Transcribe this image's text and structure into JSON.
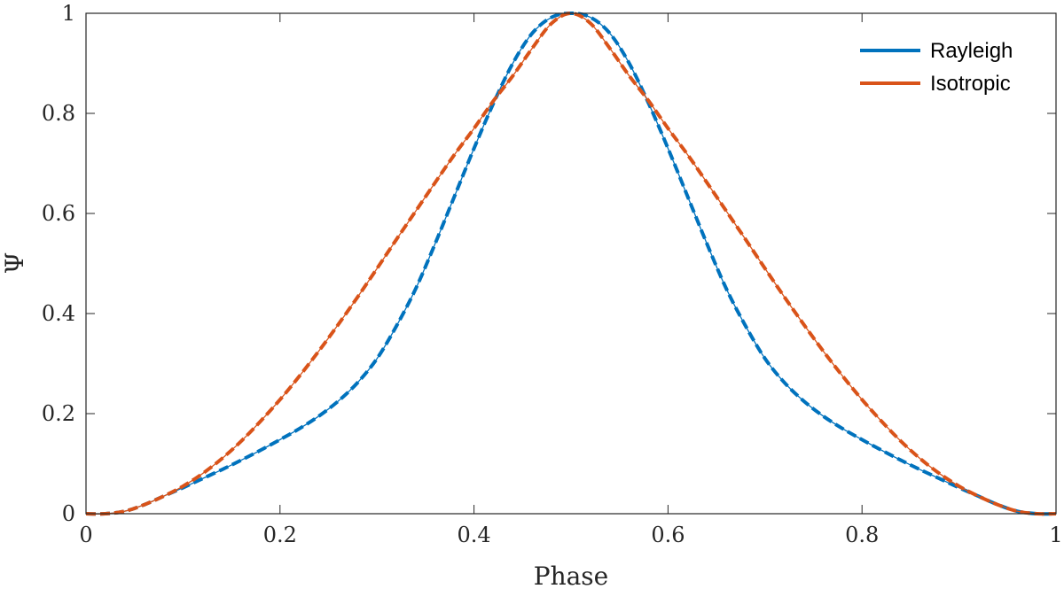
{
  "chart_data": {
    "type": "line",
    "title": "",
    "xlabel": "Phase",
    "ylabel": "Ψ",
    "xlim": [
      0,
      1
    ],
    "ylim": [
      0,
      1
    ],
    "x_ticks": [
      "0",
      "0.2",
      "0.4",
      "0.6",
      "0.8",
      "1"
    ],
    "y_ticks": [
      "0",
      "0.2",
      "0.4",
      "0.6",
      "0.8",
      "1"
    ],
    "grid": false,
    "legend_position": "top-right",
    "series": [
      {
        "name": "Rayleigh",
        "color": "#0072BD",
        "x": [
          0.0,
          0.02,
          0.04,
          0.06,
          0.08,
          0.1,
          0.12,
          0.14,
          0.16,
          0.18,
          0.2,
          0.22,
          0.24,
          0.26,
          0.28,
          0.3,
          0.32,
          0.34,
          0.36,
          0.38,
          0.4,
          0.42,
          0.44,
          0.46,
          0.48,
          0.5,
          0.52,
          0.54,
          0.56,
          0.58,
          0.6,
          0.62,
          0.64,
          0.66,
          0.68,
          0.7,
          0.72,
          0.74,
          0.76,
          0.78,
          0.8,
          0.82,
          0.84,
          0.86,
          0.88,
          0.9,
          0.92,
          0.94,
          0.96,
          0.98,
          1.0
        ],
        "y": [
          0.0,
          0.0,
          0.005,
          0.018,
          0.035,
          0.052,
          0.07,
          0.088,
          0.107,
          0.127,
          0.148,
          0.17,
          0.195,
          0.225,
          0.262,
          0.31,
          0.375,
          0.45,
          0.54,
          0.635,
          0.73,
          0.82,
          0.9,
          0.96,
          0.992,
          1.0,
          0.992,
          0.96,
          0.9,
          0.82,
          0.73,
          0.635,
          0.54,
          0.45,
          0.375,
          0.31,
          0.262,
          0.225,
          0.195,
          0.17,
          0.148,
          0.127,
          0.107,
          0.088,
          0.07,
          0.052,
          0.035,
          0.018,
          0.005,
          0.0,
          0.0
        ]
      },
      {
        "name": "Isotropic",
        "color": "#D95319",
        "x": [
          0.0,
          0.02,
          0.04,
          0.06,
          0.08,
          0.1,
          0.12,
          0.14,
          0.16,
          0.18,
          0.2,
          0.22,
          0.24,
          0.26,
          0.28,
          0.3,
          0.32,
          0.34,
          0.36,
          0.38,
          0.4,
          0.42,
          0.44,
          0.46,
          0.48,
          0.5,
          0.52,
          0.54,
          0.56,
          0.58,
          0.6,
          0.62,
          0.64,
          0.66,
          0.68,
          0.7,
          0.72,
          0.74,
          0.76,
          0.78,
          0.8,
          0.82,
          0.84,
          0.86,
          0.88,
          0.9,
          0.92,
          0.94,
          0.96,
          0.98,
          1.0
        ],
        "y": [
          0.0,
          0.0,
          0.005,
          0.018,
          0.035,
          0.055,
          0.08,
          0.11,
          0.145,
          0.185,
          0.228,
          0.275,
          0.325,
          0.378,
          0.433,
          0.49,
          0.548,
          0.605,
          0.662,
          0.718,
          0.77,
          0.825,
          0.875,
          0.93,
          0.98,
          1.0,
          0.98,
          0.93,
          0.875,
          0.825,
          0.77,
          0.718,
          0.662,
          0.605,
          0.548,
          0.49,
          0.433,
          0.378,
          0.325,
          0.275,
          0.228,
          0.185,
          0.145,
          0.11,
          0.08,
          0.055,
          0.035,
          0.018,
          0.005,
          0.0,
          0.0
        ]
      }
    ]
  }
}
